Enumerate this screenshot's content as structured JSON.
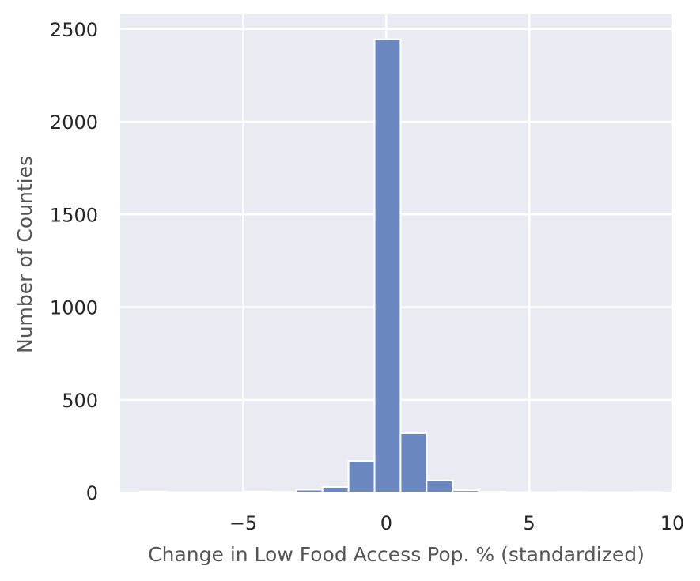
{
  "chart_data": {
    "type": "bar",
    "subtype": "histogram",
    "title": "",
    "xlabel": "Change in Low Food Access Pop. % (standardized)",
    "ylabel": "Number of Counties",
    "xlim": [
      -9.3,
      10.0
    ],
    "ylim": [
      0,
      2580
    ],
    "xticks": [
      {
        "value": -5,
        "label": "−5"
      },
      {
        "value": 0,
        "label": "0"
      },
      {
        "value": 5,
        "label": "5"
      },
      {
        "value": 10,
        "label": "10"
      }
    ],
    "yticks": [
      {
        "value": 0,
        "label": "0"
      },
      {
        "value": 500,
        "label": "500"
      },
      {
        "value": 1000,
        "label": "1000"
      },
      {
        "value": 1500,
        "label": "1500"
      },
      {
        "value": 2000,
        "label": "2000"
      },
      {
        "value": 2500,
        "label": "2500"
      }
    ],
    "bin_width": 0.91,
    "bin_start": -8.6,
    "bins": [
      {
        "x0": -8.6,
        "x1": -7.69,
        "count": 5
      },
      {
        "x0": -7.69,
        "x1": -6.78,
        "count": 2
      },
      {
        "x0": -6.78,
        "x1": -5.87,
        "count": 2
      },
      {
        "x0": -5.87,
        "x1": -4.96,
        "count": 2
      },
      {
        "x0": -4.96,
        "x1": -4.05,
        "count": 5
      },
      {
        "x0": -4.05,
        "x1": -3.14,
        "count": 3
      },
      {
        "x0": -3.14,
        "x1": -2.23,
        "count": 15
      },
      {
        "x0": -2.23,
        "x1": -1.32,
        "count": 30
      },
      {
        "x0": -1.32,
        "x1": -0.41,
        "count": 170
      },
      {
        "x0": -0.41,
        "x1": 0.5,
        "count": 2445
      },
      {
        "x0": 0.5,
        "x1": 1.41,
        "count": 320
      },
      {
        "x0": 1.41,
        "x1": 2.32,
        "count": 65
      },
      {
        "x0": 2.32,
        "x1": 3.23,
        "count": 12
      },
      {
        "x0": 3.23,
        "x1": 4.14,
        "count": 4
      },
      {
        "x0": 4.14,
        "x1": 5.05,
        "count": 2
      },
      {
        "x0": 5.05,
        "x1": 5.96,
        "count": 2
      },
      {
        "x0": 5.96,
        "x1": 6.87,
        "count": 3
      },
      {
        "x0": 6.87,
        "x1": 7.78,
        "count": 2
      },
      {
        "x0": 7.78,
        "x1": 8.69,
        "count": 2
      },
      {
        "x0": 8.69,
        "x1": 9.6,
        "count": 3
      }
    ],
    "grid": true,
    "legend": "none",
    "colors": {
      "bar_fill": "#6a88bf",
      "bar_edge": "#ffffff",
      "plot_background": "#eaeaf2",
      "grid": "#ffffff"
    }
  }
}
